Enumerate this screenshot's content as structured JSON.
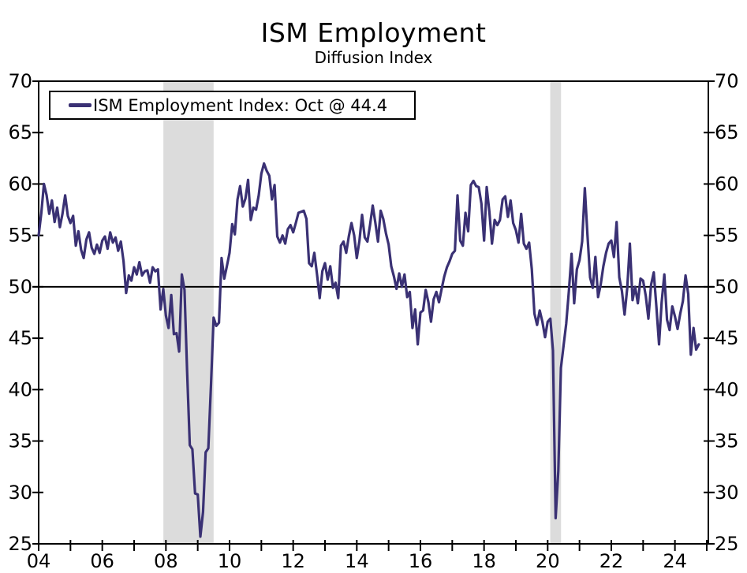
{
  "page": {
    "title": "ISM Employment",
    "subtitle": "Diffusion Index"
  },
  "chart_data": {
    "type": "line",
    "title": "ISM Employment",
    "subtitle": "Diffusion Index",
    "legend": {
      "label": "ISM Employment Index: Oct @ 44.4",
      "position": "top-left"
    },
    "grid": false,
    "y_axis": {
      "min": 25,
      "max": 70,
      "step": 5,
      "ticks": [
        70,
        65,
        60,
        55,
        50,
        45,
        40,
        35,
        30,
        25
      ],
      "sides": "both"
    },
    "x_axis": {
      "range": [
        2004,
        2025.05
      ],
      "minor_tick_interval": 1,
      "major_tick_years": [
        2004,
        2006,
        2008,
        2010,
        2012,
        2014,
        2016,
        2018,
        2020,
        2022,
        2024
      ],
      "major_tick_labels": [
        "04",
        "06",
        "08",
        "10",
        "12",
        "14",
        "16",
        "18",
        "20",
        "22",
        "24"
      ]
    },
    "reference_line": 50,
    "recession_bands": [
      {
        "start": 2007.92,
        "end": 2009.5
      },
      {
        "start": 2020.08,
        "end": 2020.42
      }
    ],
    "colors": {
      "line": "#3a3174",
      "recession_band": "#dcdcdc",
      "reference_line": "#000000",
      "axis": "#000000",
      "background": "#ffffff",
      "legend_border": "#000000"
    },
    "series": [
      {
        "name": "ISM Employment Index",
        "frequency": "monthly",
        "start_month": "2004-01",
        "end_month": "2024-10",
        "last_point": {
          "label": "Oct @ 44.4",
          "value": 44.4
        },
        "monthly_values_by_year": [
          {
            "year": 2004,
            "values": [
              55.0,
              57.2,
              60.0,
              58.9,
              57.1,
              58.4,
              56.3,
              57.7,
              55.8,
              57.1,
              58.9,
              56.9
            ]
          },
          {
            "year": 2005,
            "values": [
              56.2,
              56.9,
              54.0,
              55.4,
              53.6,
              52.8,
              54.6,
              55.3,
              53.8,
              53.2,
              54.1,
              53.3
            ]
          },
          {
            "year": 2006,
            "values": [
              54.5,
              54.9,
              53.7,
              55.3,
              54.3,
              54.8,
              53.5,
              54.4,
              52.5,
              49.4,
              51.1,
              50.6
            ]
          },
          {
            "year": 2007,
            "values": [
              51.9,
              51.2,
              52.4,
              51.1,
              51.5,
              51.6,
              50.4,
              51.9,
              51.5,
              51.7,
              47.8,
              49.8
            ]
          },
          {
            "year": 2008,
            "values": [
              47.2,
              46.0,
              49.2,
              45.4,
              45.5,
              43.7,
              51.2,
              49.7,
              41.8,
              34.6,
              34.2,
              29.9
            ]
          },
          {
            "year": 2009,
            "values": [
              29.8,
              25.7,
              28.1,
              33.9,
              34.3,
              40.5,
              47.0,
              46.2,
              46.5,
              52.8,
              50.8,
              52.0
            ]
          },
          {
            "year": 2010,
            "values": [
              53.3,
              56.1,
              55.1,
              58.5,
              59.8,
              57.8,
              58.6,
              60.4,
              56.5,
              57.7,
              57.5,
              58.9
            ]
          },
          {
            "year": 2011,
            "values": [
              61.0,
              62.0,
              61.3,
              60.8,
              58.5,
              59.9,
              54.9,
              54.3,
              55.0,
              54.2,
              55.6,
              56.0
            ]
          },
          {
            "year": 2012,
            "values": [
              55.3,
              56.2,
              57.2,
              57.3,
              57.4,
              56.6,
              52.3,
              52.0,
              53.3,
              51.2,
              48.9,
              51.5
            ]
          },
          {
            "year": 2013,
            "values": [
              52.3,
              50.7,
              52.0,
              49.9,
              50.4,
              48.9,
              54.0,
              54.4,
              53.3,
              54.9,
              56.2,
              55.0
            ]
          },
          {
            "year": 2014,
            "values": [
              52.8,
              54.5,
              57.0,
              54.8,
              54.4,
              56.0,
              57.9,
              56.2,
              54.4,
              57.4,
              56.6,
              55.2
            ]
          },
          {
            "year": 2015,
            "values": [
              54.1,
              52.0,
              51.0,
              49.8,
              51.3,
              50.0,
              51.2,
              49.0,
              49.5,
              46.0,
              47.8,
              44.4
            ]
          },
          {
            "year": 2016,
            "values": [
              47.5,
              47.7,
              49.7,
              48.5,
              46.6,
              48.8,
              49.5,
              48.5,
              49.8,
              51.0,
              51.9,
              52.5
            ]
          },
          {
            "year": 2017,
            "values": [
              53.2,
              53.5,
              58.9,
              54.5,
              54.0,
              57.2,
              55.4,
              59.9,
              60.3,
              59.8,
              59.7,
              58.1
            ]
          },
          {
            "year": 2018,
            "values": [
              54.5,
              59.7,
              57.3,
              54.2,
              56.5,
              56.0,
              56.5,
              58.5,
              58.8,
              56.8,
              58.4,
              56.2
            ]
          },
          {
            "year": 2019,
            "values": [
              55.5,
              54.3,
              57.1,
              54.2,
              53.7,
              54.3,
              51.7,
              47.4,
              46.3,
              47.7,
              46.6,
              45.1
            ]
          },
          {
            "year": 2020,
            "values": [
              46.6,
              46.9,
              43.8,
              27.5,
              32.1,
              42.1,
              44.3,
              46.4,
              49.6,
              53.2,
              48.4,
              51.7
            ]
          },
          {
            "year": 2021,
            "values": [
              52.6,
              54.4,
              59.6,
              55.1,
              50.9,
              49.9,
              52.9,
              49.0,
              50.2,
              52.0,
              53.3,
              54.2
            ]
          },
          {
            "year": 2022,
            "values": [
              54.5,
              52.9,
              56.3,
              50.9,
              49.6,
              47.3,
              49.9,
              54.2,
              48.7,
              50.0,
              48.4,
              50.8
            ]
          },
          {
            "year": 2023,
            "values": [
              50.6,
              49.1,
              46.9,
              50.2,
              51.4,
              48.1,
              44.4,
              48.5,
              51.2,
              46.8,
              45.8,
              48.1
            ]
          },
          {
            "year": 2024,
            "values": [
              47.1,
              45.9,
              47.4,
              48.6,
              51.1,
              49.3,
              43.4,
              46.0,
              43.9,
              44.4
            ]
          }
        ]
      }
    ]
  }
}
